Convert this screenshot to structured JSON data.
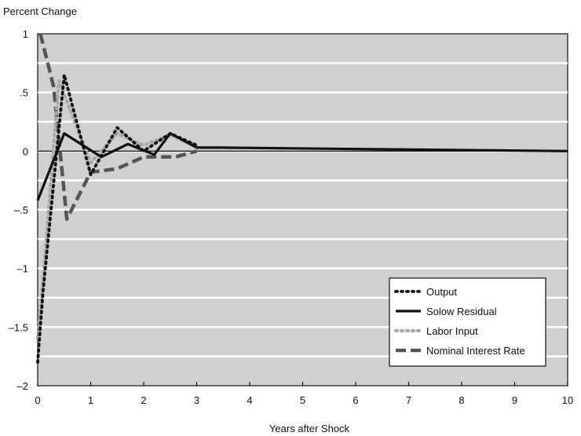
{
  "chart_data": {
    "type": "line",
    "title": "",
    "ylabel": "Percent Change",
    "xlabel": "Years after Shock",
    "xlim": [
      0,
      10
    ],
    "ylim": [
      -2,
      1
    ],
    "x_ticks": [
      0,
      1,
      2,
      3,
      4,
      5,
      6,
      7,
      8,
      9,
      10
    ],
    "x_tick_labels": [
      "0",
      "1",
      "2",
      "3",
      "4",
      "5",
      "6",
      "7",
      "8",
      "9",
      "10"
    ],
    "y_ticks": [
      1,
      0.5,
      0,
      -0.5,
      -1,
      -1.5,
      -2
    ],
    "y_tick_labels": [
      "1",
      ".5",
      "0",
      "–.5",
      "–1",
      "–1.5",
      "–2"
    ],
    "grid": true,
    "background": "#d0d0d0",
    "legend_position": "bottom-right",
    "series": [
      {
        "name": "Output",
        "style": "dotted",
        "color": "#111111",
        "x": [
          0,
          0.1,
          0.5,
          1.0,
          1.5,
          2.0,
          2.5,
          3.0
        ],
        "y": [
          -1.8,
          -1.2,
          0.65,
          -0.2,
          0.2,
          0.0,
          0.15,
          0.05
        ]
      },
      {
        "name": "Solow Residual",
        "style": "solid",
        "color": "#111111",
        "x": [
          0,
          0.5,
          1.2,
          1.7,
          2.2,
          2.5,
          3.0,
          3.4,
          10.0
        ],
        "y": [
          -0.42,
          0.15,
          -0.05,
          0.06,
          -0.03,
          0.15,
          0.03,
          0.03,
          0.0
        ],
        "extra_x": [],
        "extra_y": []
      },
      {
        "name": "Labor Input",
        "style": "dotted",
        "color": "#a8a8a8",
        "x": [
          0,
          0.1,
          0.4,
          1.0,
          1.5,
          2.0,
          2.5,
          3.0
        ],
        "y": [
          -1.6,
          -1.1,
          0.6,
          -0.1,
          0.15,
          0.05,
          0.14,
          0.04
        ]
      },
      {
        "name": "Nominal Interest Rate",
        "style": "dashed",
        "color": "#555555",
        "x": [
          0.05,
          0.3,
          0.55,
          1.0,
          1.5,
          2.0,
          2.6,
          3.0
        ],
        "y": [
          1.0,
          0.55,
          -0.58,
          -0.18,
          -0.15,
          -0.05,
          -0.05,
          0.0
        ]
      }
    ]
  }
}
